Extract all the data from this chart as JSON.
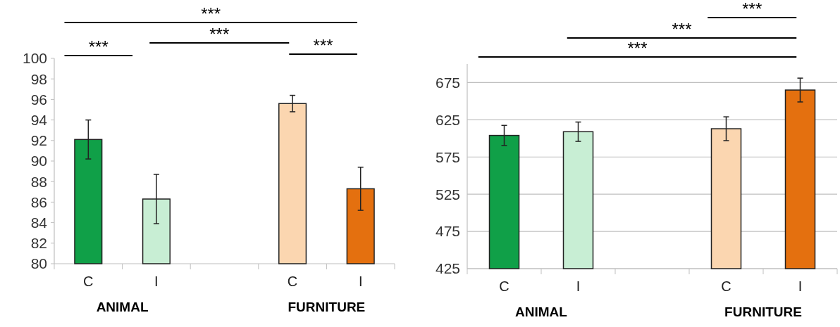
{
  "chart_data": [
    {
      "type": "bar",
      "categories": [
        "C",
        "I",
        null,
        "C",
        "I"
      ],
      "values": [
        92.1,
        86.3,
        null,
        95.6,
        87.3
      ],
      "errors": [
        1.9,
        2.4,
        null,
        0.8,
        2.1
      ],
      "colors": [
        "#10a048",
        "#c8eed4",
        null,
        "#fbd6b0",
        "#e4700f"
      ],
      "ylim": [
        80,
        100
      ],
      "yticks": [
        80,
        82,
        84,
        86,
        88,
        90,
        92,
        94,
        96,
        98,
        100
      ],
      "grid": false,
      "annotations": [
        "***",
        "***",
        "***",
        "***",
        "ANIMAL",
        "FURNITURE"
      ]
    },
    {
      "type": "bar",
      "categories": [
        "C",
        "I",
        null,
        "C",
        "I"
      ],
      "values": [
        604,
        609,
        null,
        613,
        665
      ],
      "errors": [
        13.5,
        13,
        null,
        16,
        16
      ],
      "colors": [
        "#10a048",
        "#c8eed4",
        null,
        "#fbd6b0",
        "#e4700f"
      ],
      "ylim": [
        425,
        700
      ],
      "yticks": [
        425,
        475,
        525,
        575,
        625,
        675
      ],
      "grid": "y",
      "annotations": [
        "***",
        "***",
        "***",
        "ANIMAL",
        "FURNITURE"
      ]
    }
  ]
}
